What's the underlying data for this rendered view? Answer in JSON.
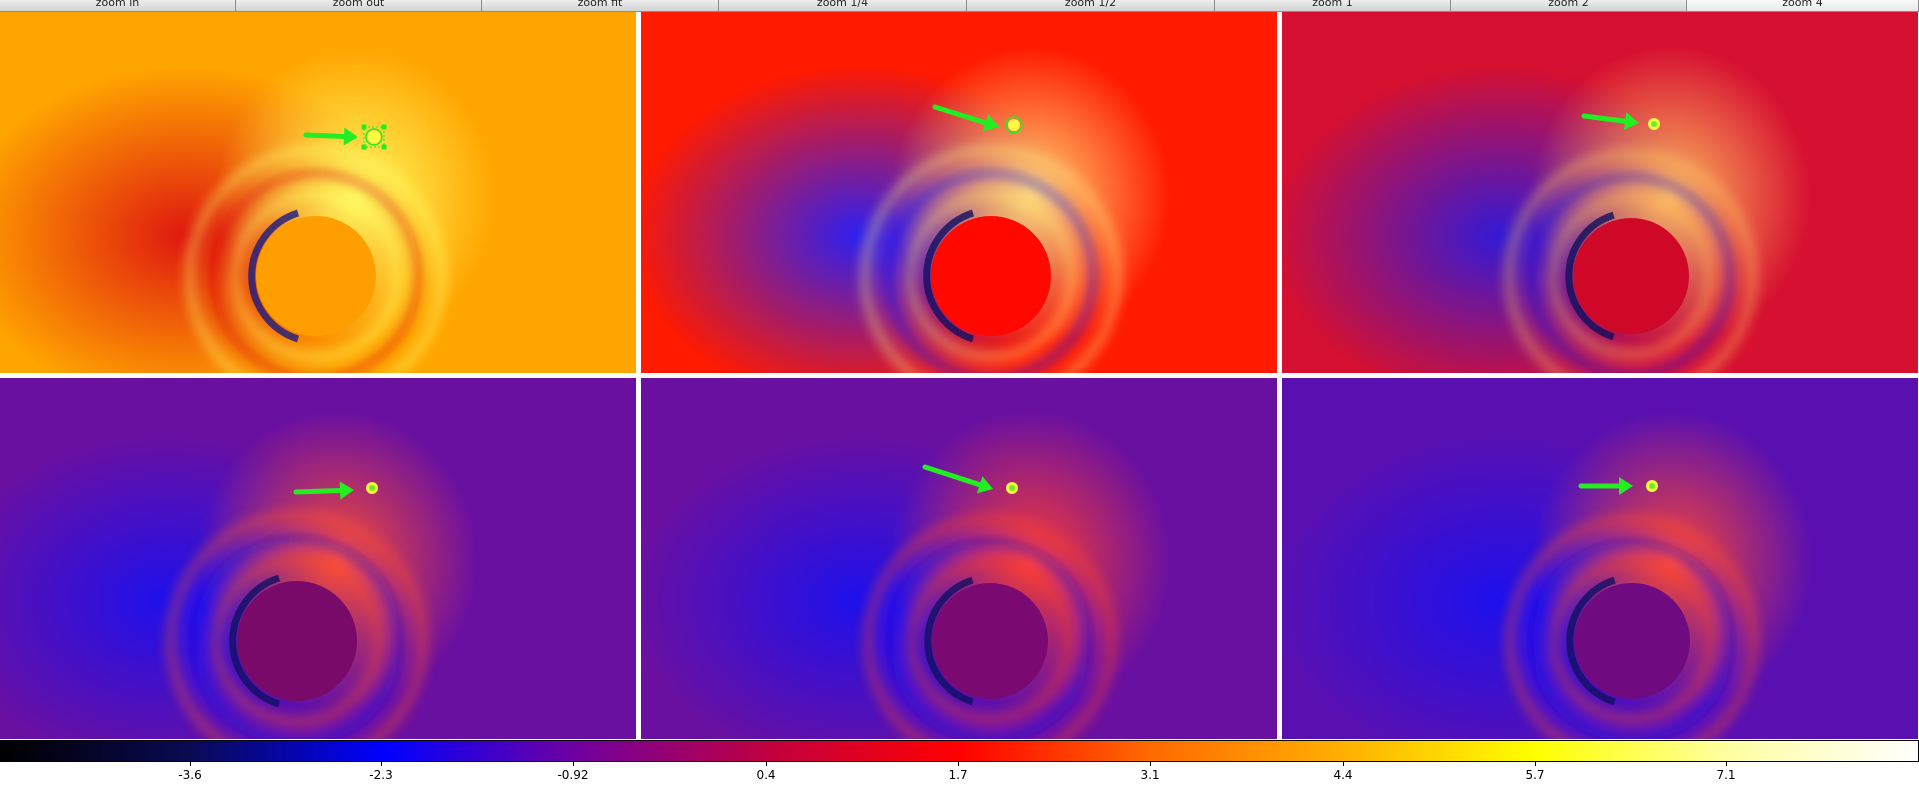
{
  "toolbar": {
    "buttons": [
      {
        "label": "zoom in",
        "name": "zoom-in-button"
      },
      {
        "label": "zoom out",
        "name": "zoom-out-button"
      },
      {
        "label": "zoom fit",
        "name": "zoom-fit-button"
      },
      {
        "label": "zoom 1/4",
        "name": "zoom-quarter-button"
      },
      {
        "label": "zoom 1/2",
        "name": "zoom-half-button"
      },
      {
        "label": "zoom 1",
        "name": "zoom-1-button"
      },
      {
        "label": "zoom 2",
        "name": "zoom-2-button"
      },
      {
        "label": "zoom 4",
        "name": "zoom-4-button"
      }
    ],
    "active_label": "zoom 4"
  },
  "frames": [
    {
      "name": "frame-1",
      "background": "#ffa500",
      "halo": "#ffff66",
      "shadow": "#dd1010",
      "dark": "#1a1a80",
      "mask": "#ff9e00",
      "marker": "box-region"
    },
    {
      "name": "frame-2",
      "background": "#ff1a00",
      "halo": "#ffe07a",
      "shadow": "#2020ff",
      "dark": "#101060",
      "mask": "#ff0800",
      "marker": "circle-region"
    },
    {
      "name": "frame-3",
      "background": "#d61030",
      "halo": "#ffc060",
      "shadow": "#2a1adf",
      "dark": "#10105a",
      "mask": "#d00828",
      "marker": "point"
    },
    {
      "name": "frame-4",
      "background": "#6a10a0",
      "halo": "#ff5030",
      "shadow": "#1a10f0",
      "dark": "#101060",
      "mask": "#7a0a6a",
      "marker": "point"
    },
    {
      "name": "frame-5",
      "background": "#6a10a0",
      "halo": "#ff4030",
      "shadow": "#1a10f0",
      "dark": "#101060",
      "mask": "#7a0a72",
      "marker": "point"
    },
    {
      "name": "frame-6",
      "background": "#5a10b0",
      "halo": "#ff4a30",
      "shadow": "#1a10f0",
      "dark": "#101060",
      "mask": "#700a80",
      "marker": "point"
    }
  ],
  "colorbar": {
    "colors": [
      "#000000",
      "#0a0a55",
      "#0000ff",
      "#7000a0",
      "#c00040",
      "#ff0000",
      "#ff6a00",
      "#ffb000",
      "#ffff00",
      "#ffffa0",
      "#ffffff"
    ],
    "ticks": [
      "-3.6",
      "-2.3",
      "-0.92",
      "0.4",
      "1.7",
      "3.1",
      "4.4",
      "5.7",
      "7.1"
    ]
  },
  "arrow_color": "#22ee22"
}
